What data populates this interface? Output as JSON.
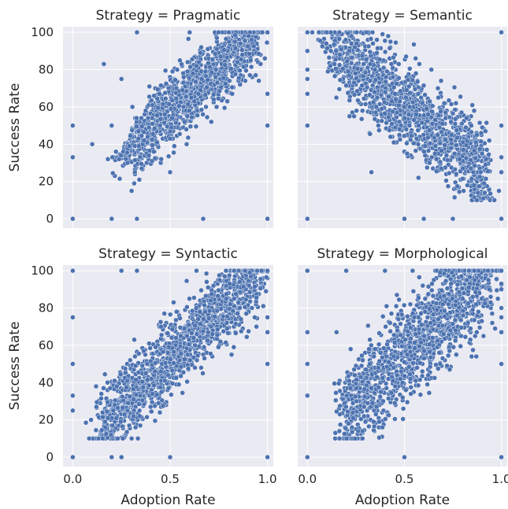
{
  "chart_data": {
    "type": "scatter",
    "layout": "facet-grid-2x2",
    "facet_variable": "Strategy",
    "xlabel": "Adoption Rate",
    "ylabel": "Success Rate",
    "xlim": [
      -0.05,
      1.03
    ],
    "ylim": [
      -5,
      103
    ],
    "x_ticks": [
      "0.0",
      "0.5",
      "1.0"
    ],
    "y_ticks": [
      "0",
      "20",
      "40",
      "60",
      "80",
      "100"
    ],
    "grid": true,
    "legend": "none",
    "point_color": "#4c72b0",
    "panels": [
      {
        "title": "Strategy = Pragmatic",
        "trend": "positive",
        "bulk_x_range": [
          0.25,
          0.95
        ],
        "notable_points": [
          {
            "x": 0.0,
            "y": 50
          },
          {
            "x": 0.0,
            "y": 33
          },
          {
            "x": 0.0,
            "y": 0
          },
          {
            "x": 0.33,
            "y": 100
          },
          {
            "x": 0.1,
            "y": 40
          },
          {
            "x": 0.16,
            "y": 83
          },
          {
            "x": 0.2,
            "y": 50
          },
          {
            "x": 0.25,
            "y": 75
          },
          {
            "x": 0.2,
            "y": 0
          },
          {
            "x": 0.33,
            "y": 0
          },
          {
            "x": 0.67,
            "y": 0
          },
          {
            "x": 1.0,
            "y": 0
          },
          {
            "x": 1.0,
            "y": 100
          },
          {
            "x": 1.0,
            "y": 67
          },
          {
            "x": 1.0,
            "y": 50
          },
          {
            "x": 0.5,
            "y": 25
          }
        ]
      },
      {
        "title": "Strategy = Semantic",
        "trend": "negative",
        "bulk_x_range": [
          0.1,
          0.92
        ],
        "notable_points": [
          {
            "x": 0.0,
            "y": 100
          },
          {
            "x": 0.0,
            "y": 90
          },
          {
            "x": 0.0,
            "y": 80
          },
          {
            "x": 0.0,
            "y": 75
          },
          {
            "x": 0.0,
            "y": 67
          },
          {
            "x": 0.0,
            "y": 50
          },
          {
            "x": 0.0,
            "y": 0
          },
          {
            "x": 1.0,
            "y": 100
          },
          {
            "x": 1.0,
            "y": 50
          },
          {
            "x": 1.0,
            "y": 33
          },
          {
            "x": 1.0,
            "y": 25
          },
          {
            "x": 1.0,
            "y": 0
          },
          {
            "x": 0.5,
            "y": 0
          },
          {
            "x": 0.6,
            "y": 0
          },
          {
            "x": 0.75,
            "y": 0
          },
          {
            "x": 0.33,
            "y": 25
          }
        ]
      },
      {
        "title": "Strategy = Syntactic",
        "trend": "positive",
        "bulk_x_range": [
          0.12,
          0.97
        ],
        "notable_points": [
          {
            "x": 0.0,
            "y": 100
          },
          {
            "x": 0.0,
            "y": 75
          },
          {
            "x": 0.0,
            "y": 50
          },
          {
            "x": 0.0,
            "y": 33
          },
          {
            "x": 0.0,
            "y": 25
          },
          {
            "x": 0.0,
            "y": 0
          },
          {
            "x": 0.25,
            "y": 100
          },
          {
            "x": 0.33,
            "y": 100
          },
          {
            "x": 0.5,
            "y": 0
          },
          {
            "x": 1.0,
            "y": 100
          },
          {
            "x": 1.0,
            "y": 75
          },
          {
            "x": 1.0,
            "y": 67
          },
          {
            "x": 1.0,
            "y": 50
          },
          {
            "x": 1.0,
            "y": 0
          },
          {
            "x": 0.25,
            "y": 0
          },
          {
            "x": 0.2,
            "y": 0
          }
        ]
      },
      {
        "title": "Strategy = Morphological",
        "trend": "positive",
        "bulk_x_range": [
          0.18,
          0.95
        ],
        "notable_points": [
          {
            "x": 0.0,
            "y": 100
          },
          {
            "x": 0.0,
            "y": 67
          },
          {
            "x": 0.0,
            "y": 50
          },
          {
            "x": 0.0,
            "y": 33
          },
          {
            "x": 0.0,
            "y": 0
          },
          {
            "x": 0.2,
            "y": 100
          },
          {
            "x": 0.4,
            "y": 100
          },
          {
            "x": 0.5,
            "y": 0
          },
          {
            "x": 1.0,
            "y": 100
          },
          {
            "x": 1.0,
            "y": 90
          },
          {
            "x": 1.0,
            "y": 80
          },
          {
            "x": 1.0,
            "y": 75
          },
          {
            "x": 1.0,
            "y": 67
          },
          {
            "x": 1.0,
            "y": 50
          },
          {
            "x": 1.0,
            "y": 0
          },
          {
            "x": 0.15,
            "y": 67
          }
        ]
      }
    ]
  }
}
